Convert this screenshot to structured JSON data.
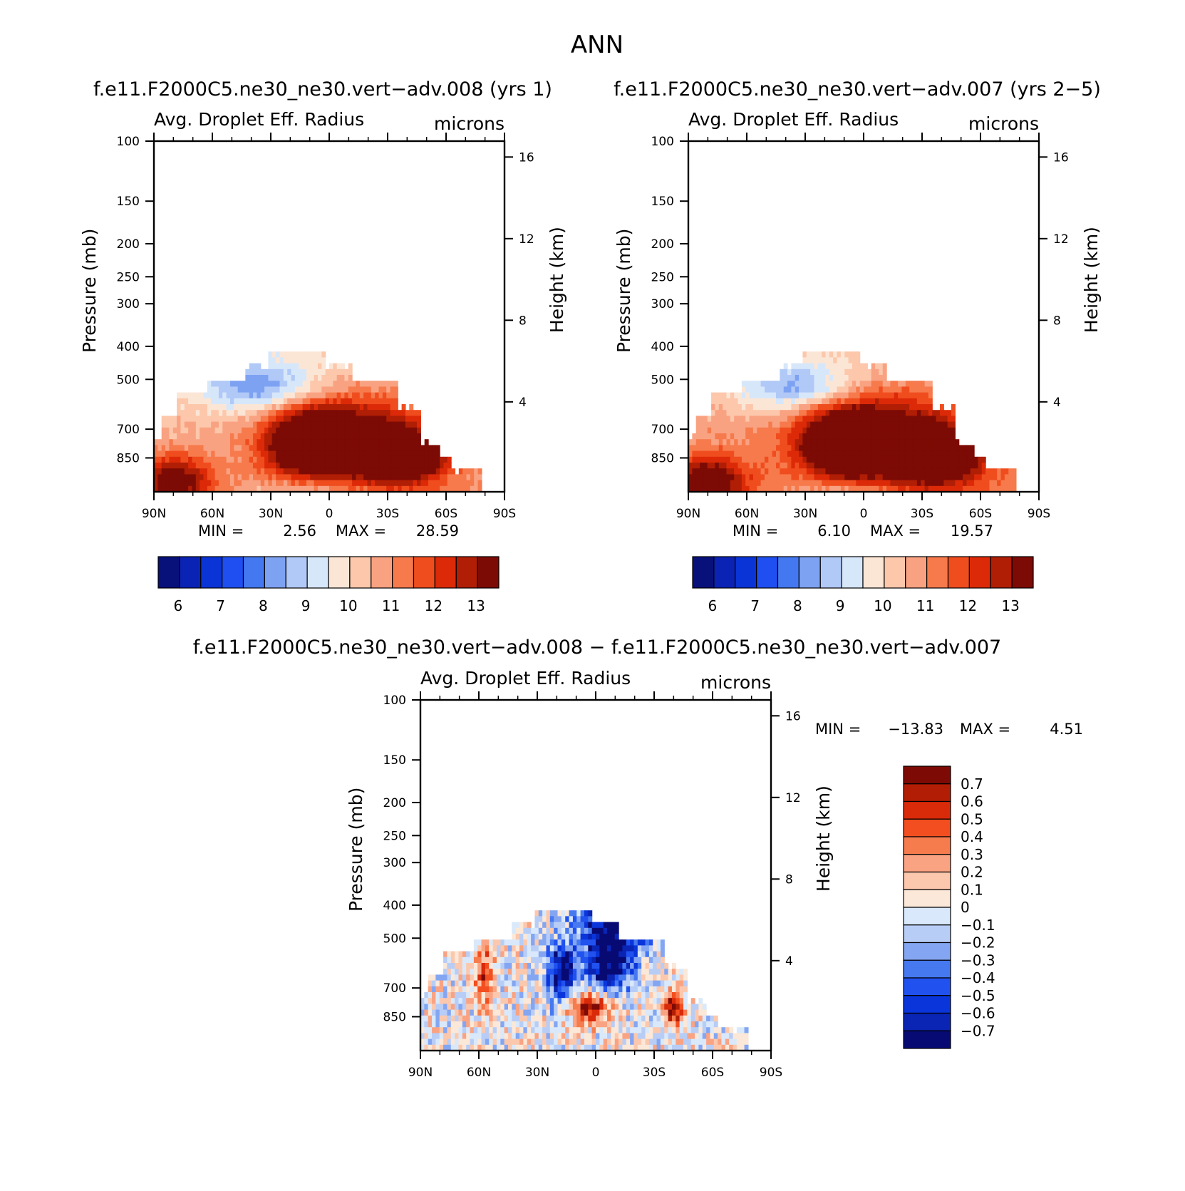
{
  "page_title": "ANN",
  "palette": {
    "abs": [
      "#08107a",
      "#0a23b4",
      "#0a34d6",
      "#1f4ff0",
      "#4478f0",
      "#7ea2f2",
      "#b1c9f7",
      "#d7e7fa",
      "#fbe6d6",
      "#fcc7ab",
      "#f9a282",
      "#f67a4c",
      "#f04d1e",
      "#dc2a08",
      "#b01e05",
      "#7d0b05"
    ],
    "diff": [
      "#080a74",
      "#0a24b4",
      "#0a35da",
      "#2152f0",
      "#4678f0",
      "#84a6f2",
      "#b8cdf6",
      "#d9e9fb",
      "#fbe8d8",
      "#fcc8ad",
      "#f9a383",
      "#f67c4e",
      "#f34e1f",
      "#d92a0a",
      "#b21d05",
      "#7e0a05"
    ]
  },
  "chart_data": [
    {
      "type": "heatmap",
      "title": "f.e11.F2000C5.ne30_ne30.vert−adv.008 (yrs 1)",
      "left_label": "Avg. Droplet Eff. Radius",
      "right_label": "microns",
      "ylabel": "Pressure (mb)",
      "ylabel_right": "Height (km)",
      "x_ticks": [
        "90N",
        "60N",
        "30N",
        "0",
        "30S",
        "60S",
        "90S"
      ],
      "y_ticks": [
        "100",
        "150",
        "200",
        "250",
        "300",
        "400",
        "500",
        "700",
        "850"
      ],
      "y_values": [
        100,
        150,
        200,
        250,
        300,
        400,
        500,
        700,
        850
      ],
      "y_right_ticks": [
        "16",
        "12",
        "8",
        "4"
      ],
      "y_right_values": [
        16,
        12,
        8,
        4
      ],
      "min_label": "MIN =",
      "min_value": "2.56",
      "max_label": "MAX =",
      "max_value": "28.59",
      "colorbar_labels": [
        "6",
        "7",
        "8",
        "9",
        "10",
        "11",
        "12",
        "13"
      ],
      "palette_key": "abs",
      "colorbar_orientation": "horizontal"
    },
    {
      "type": "heatmap",
      "title": "f.e11.F2000C5.ne30_ne30.vert−adv.007 (yrs 2−5)",
      "left_label": "Avg. Droplet Eff. Radius",
      "right_label": "microns",
      "ylabel": "Pressure (mb)",
      "ylabel_right": "Height (km)",
      "x_ticks": [
        "90N",
        "60N",
        "30N",
        "0",
        "30S",
        "60S",
        "90S"
      ],
      "y_ticks": [
        "100",
        "150",
        "200",
        "250",
        "300",
        "400",
        "500",
        "700",
        "850"
      ],
      "y_values": [
        100,
        150,
        200,
        250,
        300,
        400,
        500,
        700,
        850
      ],
      "y_right_ticks": [
        "16",
        "12",
        "8",
        "4"
      ],
      "y_right_values": [
        16,
        12,
        8,
        4
      ],
      "min_label": "MIN =",
      "min_value": "6.10",
      "max_label": "MAX =",
      "max_value": "19.57",
      "colorbar_labels": [
        "6",
        "7",
        "8",
        "9",
        "10",
        "11",
        "12",
        "13"
      ],
      "palette_key": "abs",
      "colorbar_orientation": "horizontal"
    },
    {
      "type": "heatmap",
      "title": "f.e11.F2000C5.ne30_ne30.vert−adv.008 − f.e11.F2000C5.ne30_ne30.vert−adv.007",
      "left_label": "Avg. Droplet Eff. Radius",
      "right_label": "microns",
      "ylabel": "Pressure (mb)",
      "ylabel_right": "Height (km)",
      "x_ticks": [
        "90N",
        "60N",
        "30N",
        "0",
        "30S",
        "60S",
        "90S"
      ],
      "y_ticks": [
        "100",
        "150",
        "200",
        "250",
        "300",
        "400",
        "500",
        "700",
        "850"
      ],
      "y_values": [
        100,
        150,
        200,
        250,
        300,
        400,
        500,
        700,
        850
      ],
      "y_right_ticks": [
        "16",
        "12",
        "8",
        "4"
      ],
      "y_right_values": [
        16,
        12,
        8,
        4
      ],
      "min_label": "MIN =",
      "min_value": "−13.83",
      "max_label": "MAX =",
      "max_value": "4.51",
      "colorbar_labels": [
        "0.7",
        "0.6",
        "0.5",
        "0.4",
        "0.3",
        "0.2",
        "0.1",
        "0",
        "−0.1",
        "−0.2",
        "−0.3",
        "−0.4",
        "−0.5",
        "−0.6",
        "−0.7"
      ],
      "palette_key": "diff",
      "colorbar_orientation": "vertical"
    }
  ]
}
